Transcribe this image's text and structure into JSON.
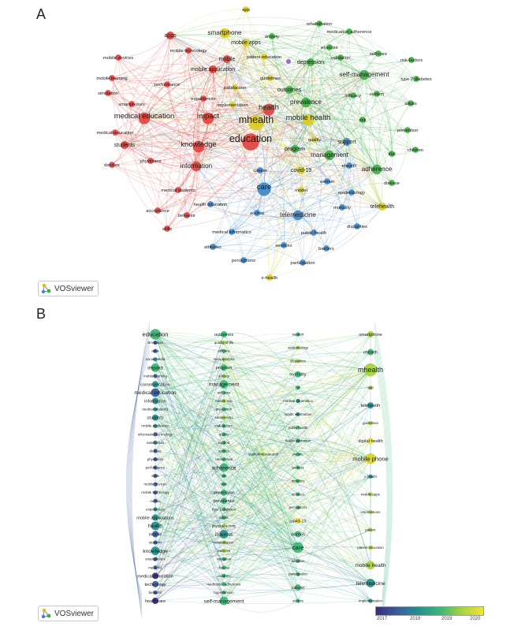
{
  "panels": {
    "a_label": "A",
    "b_label": "B"
  },
  "watermark": {
    "text": "VOSviewer"
  },
  "colorbar": {
    "ticks": [
      "2017",
      "2018",
      "2019",
      "2020"
    ],
    "colors": [
      "#3a2a7a",
      "#3b5d9e",
      "#26908e",
      "#3cb777",
      "#a6d43f",
      "#f1e530"
    ]
  },
  "cluster_colors": {
    "red": "#e0403c",
    "green": "#3fae43",
    "blue": "#3a86c8",
    "yellow": "#d8cc22",
    "purple": "#9a6ad0"
  },
  "network_a": {
    "nodes": [
      {
        "label": "app",
        "c": "yellow",
        "s": 2
      },
      {
        "label": "rehabilitation",
        "c": "green",
        "s": 2
      },
      {
        "label": "medication adherence",
        "c": "green",
        "s": 2
      },
      {
        "label": "apps",
        "c": "red",
        "s": 3
      },
      {
        "label": "smartphone",
        "c": "yellow",
        "s": 4
      },
      {
        "label": "anxiety",
        "c": "green",
        "s": 2
      },
      {
        "label": "exercise",
        "c": "green",
        "s": 2
      },
      {
        "label": "self-care",
        "c": "green",
        "s": 2
      },
      {
        "label": "mobile apps",
        "c": "yellow",
        "s": 3
      },
      {
        "label": "mobile technology",
        "c": "red",
        "s": 2
      },
      {
        "label": "risk-factors",
        "c": "green",
        "s": 2
      },
      {
        "label": "mobile devices",
        "c": "red",
        "s": 2
      },
      {
        "label": "mobile",
        "c": "red",
        "s": 3
      },
      {
        "label": "patient education",
        "c": "yellow",
        "s": 2
      },
      {
        "label": "validation",
        "c": "green",
        "s": 2
      },
      {
        "label": "depression",
        "c": "green",
        "s": 3
      },
      {
        "label": "mobile application",
        "c": "red",
        "s": 3
      },
      {
        "label": "self-management",
        "c": "green",
        "s": 4
      },
      {
        "label": "type 2 diabetes",
        "c": "green",
        "s": 2
      },
      {
        "label": "mobile learning",
        "c": "red",
        "s": 2
      },
      {
        "label": "performance",
        "c": "red",
        "s": 2
      },
      {
        "label": "guidelines",
        "c": "yellow",
        "s": 2
      },
      {
        "label": "satisfaction",
        "c": "yellow",
        "s": 2
      },
      {
        "label": "outcomes",
        "c": "green",
        "s": 3
      },
      {
        "label": "simulation",
        "c": "red",
        "s": 2
      },
      {
        "label": "efficacy",
        "c": "green",
        "s": 2
      },
      {
        "label": "system",
        "c": "green",
        "s": 2
      },
      {
        "label": "experiences",
        "c": "red",
        "s": 2
      },
      {
        "label": "prevalence",
        "c": "green",
        "s": 4
      },
      {
        "label": "adults",
        "c": "green",
        "s": 2
      },
      {
        "label": "smartphones",
        "c": "red",
        "s": 2
      },
      {
        "label": "implementation",
        "c": "yellow",
        "s": 2
      },
      {
        "label": "health",
        "c": "red",
        "s": 5
      },
      {
        "label": "medical education",
        "c": "red",
        "s": 5
      },
      {
        "label": "impact",
        "c": "red",
        "s": 5
      },
      {
        "label": "mhealth",
        "c": "yellow",
        "s": 7
      },
      {
        "label": "mobile health",
        "c": "yellow",
        "s": 5
      },
      {
        "label": "risk",
        "c": "green",
        "s": 2
      },
      {
        "label": "medical-education",
        "c": "red",
        "s": 2
      },
      {
        "label": "prevention",
        "c": "green",
        "s": 2
      },
      {
        "label": "quality",
        "c": "yellow",
        "s": 2
      },
      {
        "label": "education",
        "c": "red",
        "s": 8
      },
      {
        "label": "students",
        "c": "red",
        "s": 3
      },
      {
        "label": "support",
        "c": "blue",
        "s": 3
      },
      {
        "label": "knowledge",
        "c": "red",
        "s": 5
      },
      {
        "label": "program",
        "c": "green",
        "s": 3
      },
      {
        "label": "children",
        "c": "green",
        "s": 2
      },
      {
        "label": "management",
        "c": "green",
        "s": 4
      },
      {
        "label": "trial",
        "c": "green",
        "s": 2
      },
      {
        "label": "physicians",
        "c": "red",
        "s": 2
      },
      {
        "label": "devices",
        "c": "red",
        "s": 2
      },
      {
        "label": "information",
        "c": "red",
        "s": 4
      },
      {
        "label": "cancer",
        "c": "blue",
        "s": 2
      },
      {
        "label": "covid-19",
        "c": "yellow",
        "s": 3
      },
      {
        "label": "ehealth",
        "c": "blue",
        "s": 2
      },
      {
        "label": "adherence",
        "c": "green",
        "s": 4
      },
      {
        "label": "women",
        "c": "blue",
        "s": 2
      },
      {
        "label": "disease",
        "c": "green",
        "s": 2
      },
      {
        "label": "care",
        "c": "blue",
        "s": 6
      },
      {
        "label": "model",
        "c": "yellow",
        "s": 2
      },
      {
        "label": "epidemiology",
        "c": "blue",
        "s": 2
      },
      {
        "label": "medical students",
        "c": "red",
        "s": 2
      },
      {
        "label": "health education",
        "c": "blue",
        "s": 2
      },
      {
        "label": "telehealth",
        "c": "yellow",
        "s": 3
      },
      {
        "label": "mortality",
        "c": "blue",
        "s": 2
      },
      {
        "label": "acceptance",
        "c": "red",
        "s": 2
      },
      {
        "label": "behavior",
        "c": "red",
        "s": 2
      },
      {
        "label": "access",
        "c": "blue",
        "s": 2
      },
      {
        "label": "telemedicine",
        "c": "blue",
        "s": 4
      },
      {
        "label": "disparities",
        "c": "blue",
        "s": 2
      },
      {
        "label": "skills",
        "c": "red",
        "s": 2
      },
      {
        "label": "medical informatics",
        "c": "blue",
        "s": 2
      },
      {
        "label": "public health",
        "c": "blue",
        "s": 2
      },
      {
        "label": "attitudes",
        "c": "blue",
        "s": 2
      },
      {
        "label": "services",
        "c": "blue",
        "s": 2
      },
      {
        "label": "barriers",
        "c": "blue",
        "s": 2
      },
      {
        "label": "perceptions",
        "c": "blue",
        "s": 2
      },
      {
        "label": "participation",
        "c": "blue",
        "s": 2
      },
      {
        "label": "e-health",
        "c": "yellow",
        "s": 2
      }
    ]
  },
  "network_b": {
    "columns": [
      {
        "items": [
          {
            "label": "education",
            "s": 4,
            "c": "#3cb777"
          },
          {
            "label": "simulation",
            "s": 1,
            "c": "#3b5d9e"
          },
          {
            "label": "apps",
            "s": 1,
            "c": "#3b5d9e"
          },
          {
            "label": "social media",
            "s": 1,
            "c": "#26908e"
          },
          {
            "label": "impact",
            "s": 3,
            "c": "#3cb777"
          },
          {
            "label": "mobile learning",
            "s": 1,
            "c": "#3b5d9e"
          },
          {
            "label": "communication",
            "s": 2,
            "c": "#26908e"
          },
          {
            "label": "medical education",
            "s": 3,
            "c": "#3b5d9e"
          },
          {
            "label": "information",
            "s": 2,
            "c": "#26908e"
          },
          {
            "label": "medical students",
            "s": 1,
            "c": "#26908e"
          },
          {
            "label": "students",
            "s": 2,
            "c": "#26908e"
          },
          {
            "label": "mobile application",
            "s": 1,
            "c": "#26908e"
          },
          {
            "label": "information technology",
            "s": 1,
            "c": "#3b5d9e"
          },
          {
            "label": "satisfaction",
            "s": 1,
            "c": "#26908e"
          },
          {
            "label": "devices",
            "s": 1,
            "c": "#3b5d9e"
          },
          {
            "label": "physicians",
            "s": 1,
            "c": "#3b5d9e"
          },
          {
            "label": "performance",
            "s": 1,
            "c": "#3b5d9e"
          },
          {
            "label": "skills",
            "s": 1,
            "c": "#3b5d9e"
          },
          {
            "label": "mobile devices",
            "s": 1,
            "c": "#3b5d9e"
          },
          {
            "label": "mobile technology",
            "s": 1,
            "c": "#3b5d9e"
          },
          {
            "label": "nurses",
            "s": 1,
            "c": "#3b5d9e"
          },
          {
            "label": "experiences",
            "s": 1,
            "c": "#26908e"
          },
          {
            "label": "mobile applications",
            "s": 2,
            "c": "#26908e"
          },
          {
            "label": "health",
            "s": 3,
            "c": "#26908e"
          },
          {
            "label": "mobile",
            "s": 2,
            "c": "#3b5d9e"
          },
          {
            "label": "students",
            "s": 1,
            "c": "#3b5d9e"
          },
          {
            "label": "knowledge",
            "s": 3,
            "c": "#26908e"
          },
          {
            "label": "smartphones",
            "s": 1,
            "c": "#3b5d9e"
          },
          {
            "label": "medicine",
            "s": 1,
            "c": "#3b5d9e"
          },
          {
            "label": "medical-education",
            "s": 2,
            "c": "#3a2a7a"
          },
          {
            "label": "technology",
            "s": 2,
            "c": "#3b5d9e"
          },
          {
            "label": "behavior",
            "s": 1,
            "c": "#3b5d9e"
          },
          {
            "label": "healthcare",
            "s": 2,
            "c": "#3a2a7a"
          }
        ]
      },
      {
        "items": [
          {
            "label": "outcomes",
            "s": 2,
            "c": "#3cb777"
          },
          {
            "label": "quality of life",
            "s": 1,
            "c": "#a6d43f"
          },
          {
            "label": "efficacy",
            "s": 1,
            "c": "#3cb777"
          },
          {
            "label": "meta-analysis",
            "s": 1,
            "c": "#a6d43f"
          },
          {
            "label": "program",
            "s": 2,
            "c": "#3cb777"
          },
          {
            "label": "anxiety",
            "s": 1,
            "c": "#a6d43f"
          },
          {
            "label": "management",
            "s": 3,
            "c": "#3cb777"
          },
          {
            "label": "self-care",
            "s": 1,
            "c": "#3cb777"
          },
          {
            "label": "mobile app",
            "s": 1,
            "c": "#a6d43f"
          },
          {
            "label": "prevention",
            "s": 1,
            "c": "#3cb777"
          },
          {
            "label": "adolescents",
            "s": 1,
            "c": "#a6d43f"
          },
          {
            "label": "risk-factors",
            "s": 1,
            "c": "#3cb777"
          },
          {
            "label": "quality",
            "s": 1,
            "c": "#3cb777"
          },
          {
            "label": "support",
            "s": 1,
            "c": "#3cb777"
          },
          {
            "label": "access",
            "s": 1,
            "c": "#3cb777"
          },
          {
            "label": "intervention",
            "s": 1,
            "c": "#3cb777"
          },
          {
            "label": "adherence",
            "s": 3,
            "c": "#3cb777"
          },
          {
            "label": "risk",
            "s": 1,
            "c": "#3cb777"
          },
          {
            "label": "trial",
            "s": 1,
            "c": "#3cb777"
          },
          {
            "label": "depression",
            "s": 2,
            "c": "#3cb777"
          },
          {
            "label": "prevalence",
            "s": 2,
            "c": "#3cb777"
          },
          {
            "label": "type 2 diabetes",
            "s": 1,
            "c": "#3cb777"
          },
          {
            "label": "adults",
            "s": 1,
            "c": "#3cb777"
          },
          {
            "label": "physical activity",
            "s": 1,
            "c": "#a6d43f"
          },
          {
            "label": "internet",
            "s": 3,
            "c": "#26908e"
          },
          {
            "label": "rehabilitation",
            "s": 1,
            "c": "#a6d43f"
          },
          {
            "label": "exercise",
            "s": 1,
            "c": "#a6d43f"
          },
          {
            "label": "validation",
            "s": 1,
            "c": "#3cb777"
          },
          {
            "label": "disease",
            "s": 1,
            "c": "#3cb777"
          },
          {
            "label": "children",
            "s": 1,
            "c": "#3cb777"
          },
          {
            "label": "medication adherence",
            "s": 1,
            "c": "#3cb777"
          },
          {
            "label": "hypertension",
            "s": 1,
            "c": "#3cb777"
          },
          {
            "label": "self-management",
            "s": 3,
            "c": "#3cb777"
          }
        ]
      },
      {
        "items": [
          {
            "label": "support",
            "s": 1,
            "c": "#3cb777"
          },
          {
            "label": "epidemiology",
            "s": 1,
            "c": "#a6d43f"
          },
          {
            "label": "disparities",
            "s": 1,
            "c": "#a6d43f"
          },
          {
            "label": "mortality",
            "s": 2,
            "c": "#3cb777"
          },
          {
            "label": "hiv",
            "s": 1,
            "c": "#3cb777"
          },
          {
            "label": "medical informatics",
            "s": 1,
            "c": "#26908e"
          },
          {
            "label": "health information",
            "s": 1,
            "c": "#26908e"
          },
          {
            "label": "public health",
            "s": 1,
            "c": "#3cb777"
          },
          {
            "label": "health education",
            "s": 1,
            "c": "#26908e"
          },
          {
            "label": "people",
            "s": 1,
            "c": "#3cb777"
          },
          {
            "label": "barriers",
            "s": 1,
            "c": "#3cb777"
          },
          {
            "label": "attitudes",
            "s": 1,
            "c": "#3cb777"
          },
          {
            "label": "services",
            "s": 1,
            "c": "#3cb777"
          },
          {
            "label": "perceptions",
            "s": 1,
            "c": "#3cb777"
          },
          {
            "label": "covid-19",
            "s": 2,
            "c": "#f1e530"
          },
          {
            "label": "women",
            "s": 2,
            "c": "#3cb777"
          },
          {
            "label": "care",
            "s": 4,
            "c": "#3cb777"
          },
          {
            "label": "adoption",
            "s": 1,
            "c": "#3cb777"
          },
          {
            "label": "participation",
            "s": 1,
            "c": "#3cb777"
          },
          {
            "label": "cancer",
            "s": 2,
            "c": "#3cb777"
          },
          {
            "label": "access",
            "s": 1,
            "c": "#3cb777"
          }
        ]
      },
      {
        "items": [
          {
            "label": "smartphone",
            "s": 2,
            "c": "#a6d43f"
          },
          {
            "label": "ehealth",
            "s": 2,
            "c": "#3cb777"
          },
          {
            "label": "mhealth",
            "s": 5,
            "c": "#a6d43f"
          },
          {
            "label": "app",
            "s": 1,
            "c": "#a6d43f"
          },
          {
            "label": "telehealth",
            "s": 2,
            "c": "#26908e"
          },
          {
            "label": "guidelines",
            "s": 1,
            "c": "#a6d43f"
          },
          {
            "label": "digital health",
            "s": 2,
            "c": "#f1e530"
          },
          {
            "label": "mobile phone",
            "s": 4,
            "c": "#d8d520"
          },
          {
            "label": "e-health",
            "s": 1,
            "c": "#26908e"
          },
          {
            "label": "mobile apps",
            "s": 1,
            "c": "#a6d43f"
          },
          {
            "label": "interventions",
            "s": 1,
            "c": "#a6d43f"
          },
          {
            "label": "patient",
            "s": 1,
            "c": "#a6d43f"
          },
          {
            "label": "patient education",
            "s": 1,
            "c": "#a6d43f"
          },
          {
            "label": "mobile health",
            "s": 3,
            "c": "#a6d43f"
          },
          {
            "label": "telemedicine",
            "s": 3,
            "c": "#26908e"
          },
          {
            "label": "implementation",
            "s": 1,
            "c": "#26908e"
          }
        ]
      }
    ],
    "extra": [
      {
        "label": "qualitative research",
        "s": 1,
        "c": "#a6d43f"
      }
    ]
  }
}
